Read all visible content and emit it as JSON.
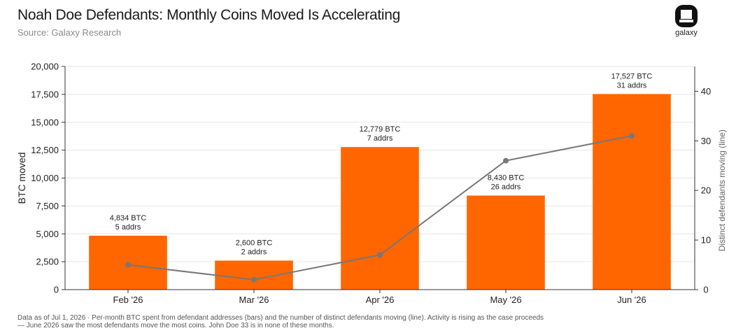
{
  "header": {
    "title": "Noah Doe Defendants: Monthly Coins Moved Is Accelerating",
    "subtitle": "Source: Galaxy Research",
    "logo_text": "galaxy"
  },
  "footnote": {
    "line1": "Data as of Jul 1, 2026 · Per-month BTC spent from defendant addresses (bars) and the number of distinct defendants moving (line). Activity is rising as the case proceeds",
    "line2": "— June 2026 saw the most defendants move the most coins. John Doe 33 is in none of these months."
  },
  "chart_data": {
    "type": "bar",
    "categories": [
      "Feb '26",
      "Mar '26",
      "Apr '26",
      "May '26",
      "Jun '26"
    ],
    "series": [
      {
        "type": "bar",
        "axis": "left",
        "values": [
          4834,
          2600,
          12779,
          8430,
          17527
        ],
        "color": "#ff6600"
      },
      {
        "type": "line",
        "axis": "right",
        "values": [
          5,
          2,
          7,
          26,
          31
        ],
        "color": "#777777"
      }
    ],
    "bar_labels": [
      [
        "4,834 BTC",
        "5 addrs"
      ],
      [
        "2,600 BTC",
        "2 addrs"
      ],
      [
        "12,779 BTC",
        "7 addrs"
      ],
      [
        "8,430 BTC",
        "26 addrs"
      ],
      [
        "17,527 BTC",
        "31 addrs"
      ]
    ],
    "ylabel": "BTC moved",
    "y2label": "Distinct defendants moving (line)",
    "ylim": [
      0,
      20000
    ],
    "y2lim": [
      0,
      45
    ],
    "yticks": [
      0,
      2500,
      5000,
      7500,
      10000,
      12500,
      15000,
      17500,
      20000
    ],
    "yticklabels": [
      "0",
      "2,500",
      "5,000",
      "7,500",
      "10,000",
      "12,500",
      "15,000",
      "17,500",
      "20,000"
    ],
    "y2ticks": [
      0,
      10,
      20,
      30,
      40
    ],
    "y2ticklabels": [
      "0",
      "10",
      "20",
      "30",
      "40"
    ],
    "grid": true,
    "legend": "none"
  }
}
